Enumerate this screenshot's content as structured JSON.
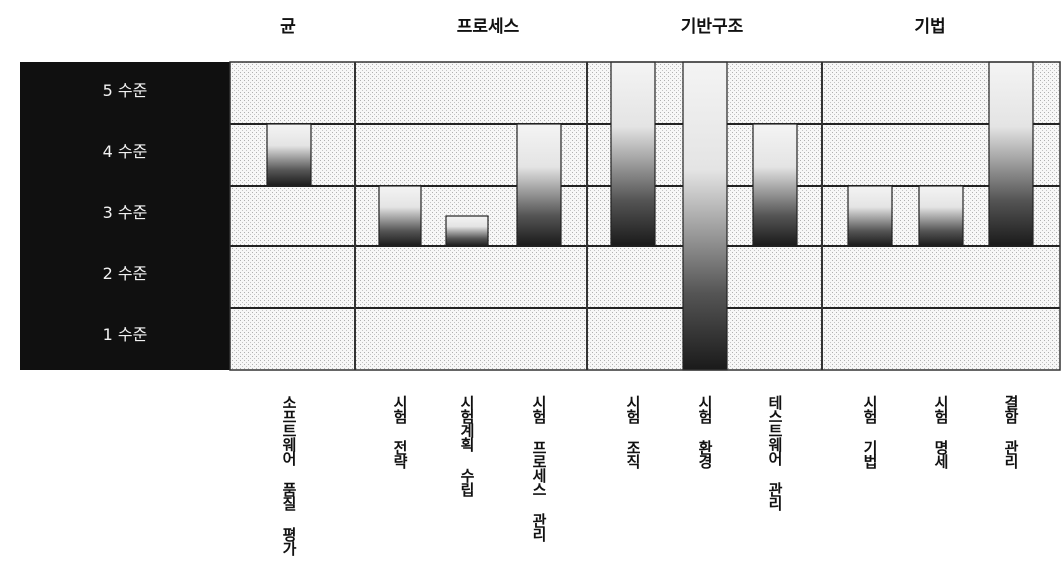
{
  "chart_data": {
    "type": "bar",
    "title": "",
    "xlabel": "",
    "ylabel": "",
    "groups": [
      {
        "name": "균",
        "categories": [
          "소프트웨어 품질 평가"
        ]
      },
      {
        "name": "프로세스",
        "categories": [
          "시험 전략",
          "시험계획 수립",
          "시험 프로세스 관리"
        ]
      },
      {
        "name": "기반구조",
        "categories": [
          "시험 조직",
          "시험 환경",
          "테스트웨어 관리"
        ]
      },
      {
        "name": "기법",
        "categories": [
          "시험 기법",
          "시험 명세",
          "결함 관리"
        ]
      }
    ],
    "levels": [
      "5 수준",
      "4 수준",
      "3 수준",
      "2 수준",
      "1 수준"
    ],
    "categories": [
      "소프트웨어 품질 평가",
      "시험 전략",
      "시험계획 수립",
      "시험 프로세스 관리",
      "시험 조직",
      "시험 환경",
      "테스트웨어 관리",
      "시험 기법",
      "시험 명세",
      "결함 관리"
    ],
    "series": [
      {
        "ranges": [
          [
            3,
            4
          ],
          [
            2,
            3
          ],
          [
            2,
            2.5
          ],
          [
            2,
            4
          ],
          [
            2,
            5
          ],
          [
            1,
            5
          ],
          [
            2,
            4
          ],
          [
            2,
            3
          ],
          [
            2,
            3
          ],
          [
            2,
            5
          ]
        ]
      }
    ],
    "ylim": [
      1,
      5
    ],
    "grid": true,
    "legend": "none",
    "colors": {
      "bar_dark": "#1a1a1a",
      "bar_light": "#f4f4f4",
      "level_bg": "#101010",
      "grid_line": "#222222"
    }
  }
}
